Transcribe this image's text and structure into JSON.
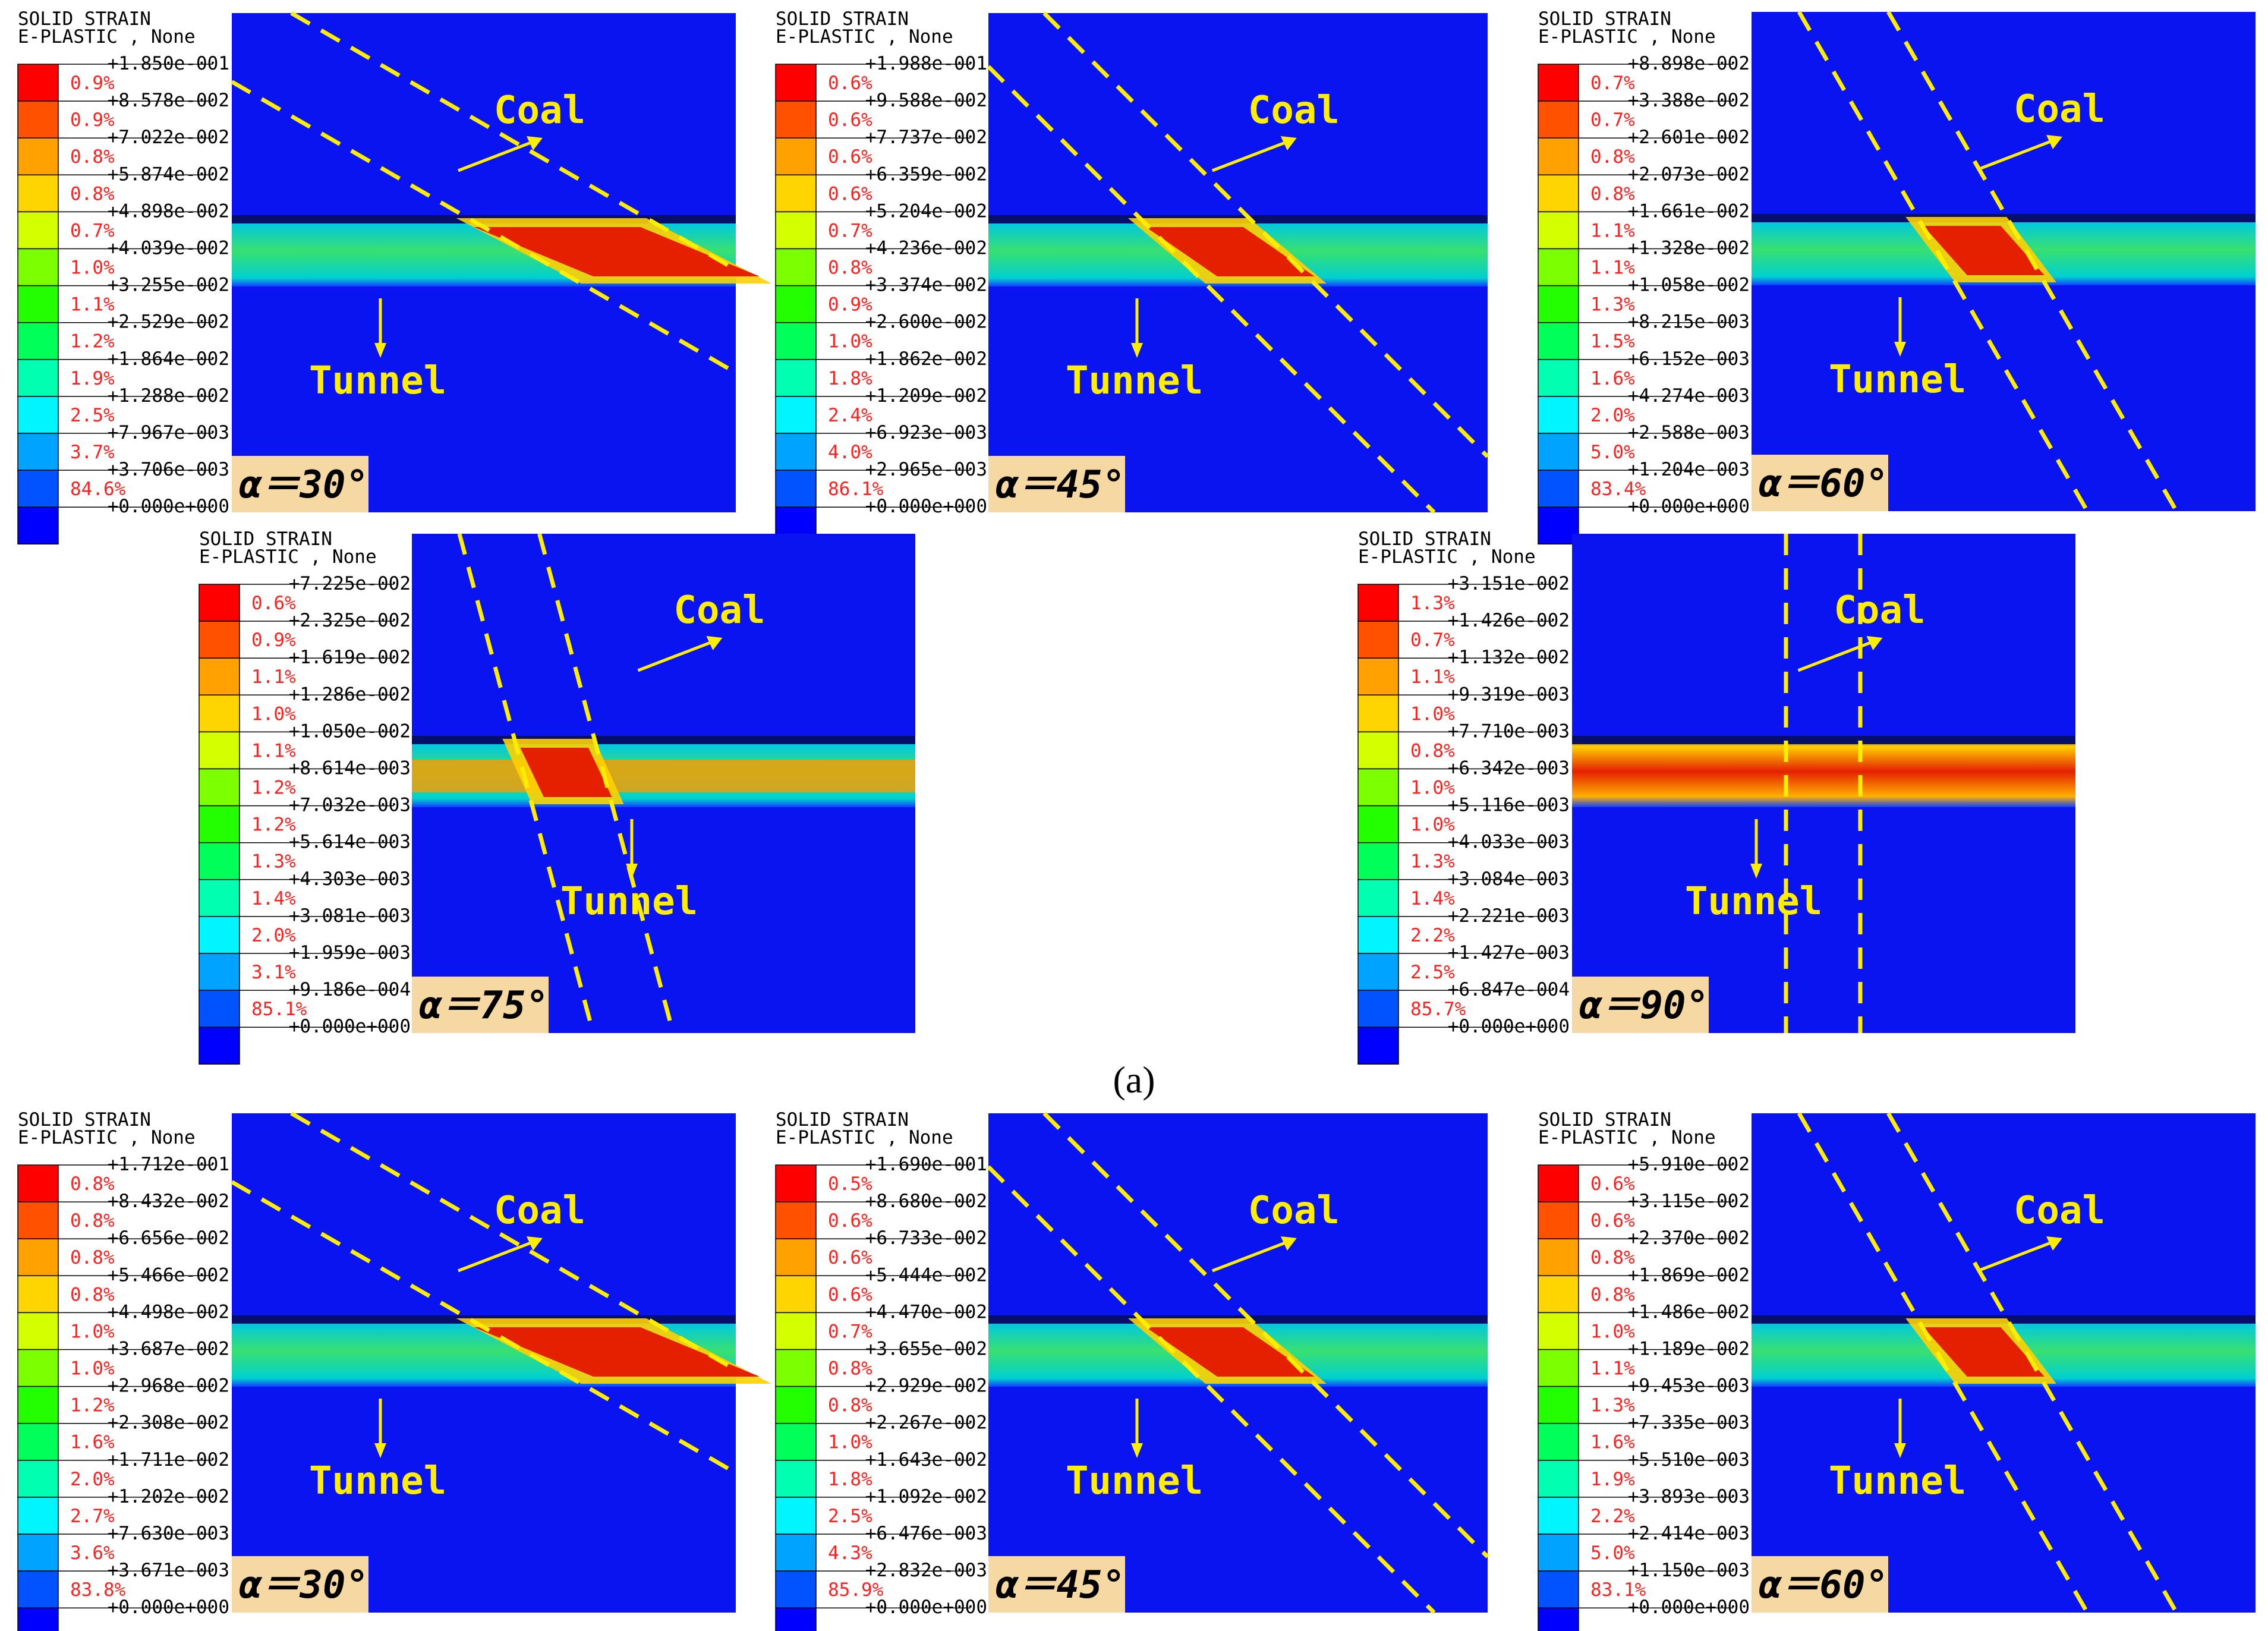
{
  "colors": {
    "legend": [
      "#ff0000",
      "#ff5100",
      "#ffa100",
      "#ffd500",
      "#d4ff00",
      "#7cff00",
      "#24ff00",
      "#00ff58",
      "#00ffb0",
      "#00f5ff",
      "#00a3ff",
      "#0053ff",
      "#0000ff"
    ],
    "model_bg": "#0a14f0",
    "marker": "#ffee00",
    "label_box": "#f6d9a2",
    "pct_text": "#ff2020"
  },
  "caption": "(a)",
  "label_coal": "Coal",
  "label_tunnel": "Tunnel",
  "panels": [
    {
      "legend_title": "SOLID STRAIN",
      "legend_subtitle": "E-PLASTIC , None",
      "angle_label": "α＝30°",
      "values": [
        "+1.850e-001",
        "+8.578e-002",
        "+7.022e-002",
        "+5.874e-002",
        "+4.898e-002",
        "+4.039e-002",
        "+3.255e-002",
        "+2.529e-002",
        "+1.864e-002",
        "+1.288e-002",
        "+7.967e-003",
        "+3.706e-003",
        "+0.000e+000"
      ],
      "percents": [
        "0.9%",
        "0.9%",
        "0.8%",
        "0.8%",
        "0.7%",
        "1.0%",
        "1.1%",
        "1.2%",
        "1.9%",
        "2.5%",
        "3.7%",
        "84.6%"
      ]
    },
    {
      "legend_title": "SOLID STRAIN",
      "legend_subtitle": "E-PLASTIC , None",
      "angle_label": "α＝45°",
      "values": [
        "+1.988e-001",
        "+9.588e-002",
        "+7.737e-002",
        "+6.359e-002",
        "+5.204e-002",
        "+4.236e-002",
        "+3.374e-002",
        "+2.600e-002",
        "+1.862e-002",
        "+1.209e-002",
        "+6.923e-003",
        "+2.965e-003",
        "+0.000e+000"
      ],
      "percents": [
        "0.6%",
        "0.6%",
        "0.6%",
        "0.6%",
        "0.7%",
        "0.8%",
        "0.9%",
        "1.0%",
        "1.8%",
        "2.4%",
        "4.0%",
        "86.1%"
      ]
    },
    {
      "legend_title": "SOLID STRAIN",
      "legend_subtitle": "E-PLASTIC , None",
      "angle_label": "α＝60°",
      "values": [
        "+8.898e-002",
        "+3.388e-002",
        "+2.601e-002",
        "+2.073e-002",
        "+1.661e-002",
        "+1.328e-002",
        "+1.058e-002",
        "+8.215e-003",
        "+6.152e-003",
        "+4.274e-003",
        "+2.588e-003",
        "+1.204e-003",
        "+0.000e+000"
      ],
      "percents": [
        "0.7%",
        "0.7%",
        "0.8%",
        "0.8%",
        "1.1%",
        "1.1%",
        "1.3%",
        "1.5%",
        "1.6%",
        "2.0%",
        "5.0%",
        "83.4%"
      ]
    },
    {
      "legend_title": "SOLID STRAIN",
      "legend_subtitle": "E-PLASTIC , None",
      "angle_label": "α＝75°",
      "values": [
        "+7.225e-002",
        "+2.325e-002",
        "+1.619e-002",
        "+1.286e-002",
        "+1.050e-002",
        "+8.614e-003",
        "+7.032e-003",
        "+5.614e-003",
        "+4.303e-003",
        "+3.081e-003",
        "+1.959e-003",
        "+9.186e-004",
        "+0.000e+000"
      ],
      "percents": [
        "0.6%",
        "0.9%",
        "1.1%",
        "1.0%",
        "1.1%",
        "1.2%",
        "1.2%",
        "1.3%",
        "1.4%",
        "2.0%",
        "3.1%",
        "85.1%"
      ]
    },
    {
      "legend_title": "SOLID STRAIN",
      "legend_subtitle": "E-PLASTIC , None",
      "angle_label": "α＝90°",
      "values": [
        "+3.151e-002",
        "+1.426e-002",
        "+1.132e-002",
        "+9.319e-003",
        "+7.710e-003",
        "+6.342e-003",
        "+5.116e-003",
        "+4.033e-003",
        "+3.084e-003",
        "+2.221e-003",
        "+1.427e-003",
        "+6.847e-004",
        "+0.000e+000"
      ],
      "percents": [
        "1.3%",
        "0.7%",
        "1.1%",
        "1.0%",
        "0.8%",
        "1.0%",
        "1.0%",
        "1.3%",
        "1.4%",
        "2.2%",
        "2.5%",
        "85.7%"
      ]
    },
    {
      "legend_title": "SOLID STRAIN",
      "legend_subtitle": "E-PLASTIC , None",
      "angle_label": "α＝30°",
      "values": [
        "+1.712e-001",
        "+8.432e-002",
        "+6.656e-002",
        "+5.466e-002",
        "+4.498e-002",
        "+3.687e-002",
        "+2.968e-002",
        "+2.308e-002",
        "+1.711e-002",
        "+1.202e-002",
        "+7.630e-003",
        "+3.671e-003",
        "+0.000e+000"
      ],
      "percents": [
        "0.8%",
        "0.8%",
        "0.8%",
        "0.8%",
        "1.0%",
        "1.0%",
        "1.2%",
        "1.6%",
        "2.0%",
        "2.7%",
        "3.6%",
        "83.8%"
      ]
    },
    {
      "legend_title": "SOLID STRAIN",
      "legend_subtitle": "E-PLASTIC , None",
      "angle_label": "α＝45°",
      "values": [
        "+1.690e-001",
        "+8.680e-002",
        "+6.733e-002",
        "+5.444e-002",
        "+4.470e-002",
        "+3.655e-002",
        "+2.929e-002",
        "+2.267e-002",
        "+1.643e-002",
        "+1.092e-002",
        "+6.476e-003",
        "+2.832e-003",
        "+0.000e+000"
      ],
      "percents": [
        "0.5%",
        "0.6%",
        "0.6%",
        "0.6%",
        "0.7%",
        "0.8%",
        "0.8%",
        "1.0%",
        "1.8%",
        "2.5%",
        "4.3%",
        "85.9%"
      ]
    },
    {
      "legend_title": "SOLID STRAIN",
      "legend_subtitle": "E-PLASTIC , None",
      "angle_label": "α＝60°",
      "values": [
        "+5.910e-002",
        "+3.115e-002",
        "+2.370e-002",
        "+1.869e-002",
        "+1.486e-002",
        "+1.189e-002",
        "+9.453e-003",
        "+7.335e-003",
        "+5.510e-003",
        "+3.893e-003",
        "+2.414e-003",
        "+1.150e-003",
        "+0.000e+000"
      ],
      "percents": [
        "0.6%",
        "0.6%",
        "0.8%",
        "0.8%",
        "1.0%",
        "1.1%",
        "1.3%",
        "1.6%",
        "1.9%",
        "2.2%",
        "5.0%",
        "83.1%"
      ]
    }
  ]
}
